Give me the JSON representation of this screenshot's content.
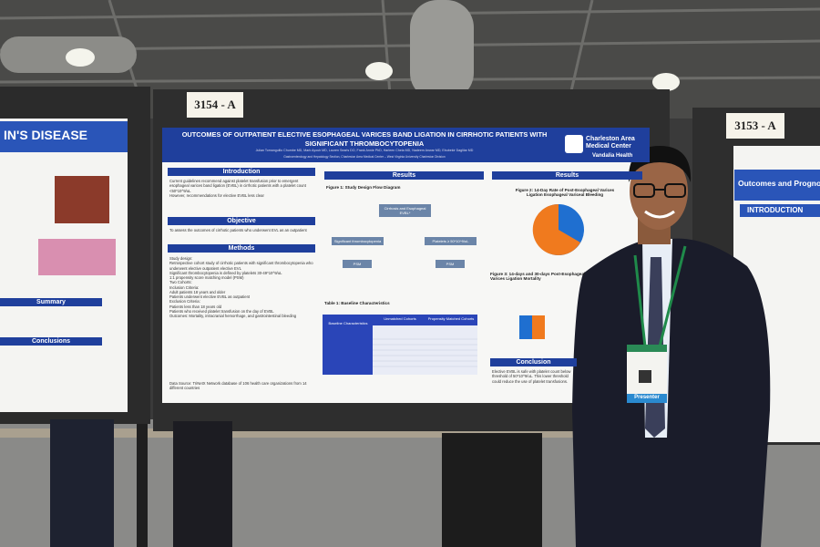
{
  "signs": {
    "left": "3154 - A",
    "right": "3153 - A"
  },
  "main_poster": {
    "title": "OUTCOMES OF OUTPATIENT ELECTIVE ESOPHAGEAL VARICES BAND LIGATION IN CIRRHOTIC PATIENTS WITH SIGNIFICANT THROMBOCYTOPENIA",
    "authors": "Julian Tomanguillo Chumbe MD, Mark Ayoub MD, Lauren Searls DO, Frank Annie PhD, Harleen Chela MD, Nadeem Anwar MD, Ebubekir Daglilar MD",
    "affiliation": "Gastroenterology and Hepatology Section, Charleston Area Medical Center – West Virginia University Charleston Division",
    "institution": "Charleston Area Medical Center",
    "network": "Vandalia Health",
    "introduction": {
      "heading": "Introduction",
      "bullets": [
        "Current guidelines recommend against platelet transfusion prior to emergent esophageal varices band ligation (EVBL) in cirrhotic patients with a platelet count <50*10^9/uL",
        "However, recommendations for elective EVBL less clear"
      ]
    },
    "objective": {
      "heading": "Objective",
      "text": "To assess the outcomes of cirrhotic patients who underwent EVL as an outpatient"
    },
    "methods": {
      "heading": "Methods",
      "lines": [
        "Study design:",
        "Retrospective cohort study of cirrhotic patients with significant thrombocytopenia who underwent elective outpatient elective EVL",
        "Significant thrombocytopenia is defined by platelets 30-49*10^9/uL",
        "1:1 propensity score matching model (PSM)",
        "Two Cohorts:",
        "Inclusion Criteria:",
        "Adult patients 18 years and older",
        "Patients underwent elective EVBL as outpatient",
        "Exclusion Criteria:",
        "Patients less than 18 years old",
        "Patients who received platelet transfusion on the day of EVBL",
        "Outcomes: Mortality, intracranial hemorrhage, and gastrointestinal bleeding"
      ],
      "data_source": "Data Source: TriNetX Network database of 106 health care organizations from 14 different countries"
    },
    "results_heading": "Results",
    "figure1": "Figure 1: Study Design Flow Diagram",
    "flow": [
      "Cirrhosis and Esophageal EVBL*",
      "Significant thrombocytopenia",
      "Platelets ≥ 50*10^9/uL",
      "PSM",
      "PSM"
    ],
    "table1": "Table 1: Baseline Characteristics",
    "table_headers": [
      "Baseline Characteristics",
      "Unmatched Cohorts",
      "Propensity Matched Cohorts"
    ],
    "figure2": "Figure 2: 14-Day Rate of Post-Esophageal Varices Ligation Esophageal Variceal Bleeding",
    "figure3": "Figure 3: 14-days and 30-days Post-Esophageal Varices Ligation Mortality",
    "conclusion": {
      "heading": "Conclusion",
      "text": "Elective EVBL is safe with platelet count below threshold of 50*10^9/uL. This lower threshold could reduce the use of platelet transfusions."
    }
  },
  "left_poster": {
    "title": "IN'S DISEASE",
    "summary": "Summary",
    "conclusions": "Conclusions"
  },
  "right_poster": {
    "title": "Outcomes and Prognosis",
    "introduction": "INTRODUCTION"
  },
  "badge": "Presenter"
}
